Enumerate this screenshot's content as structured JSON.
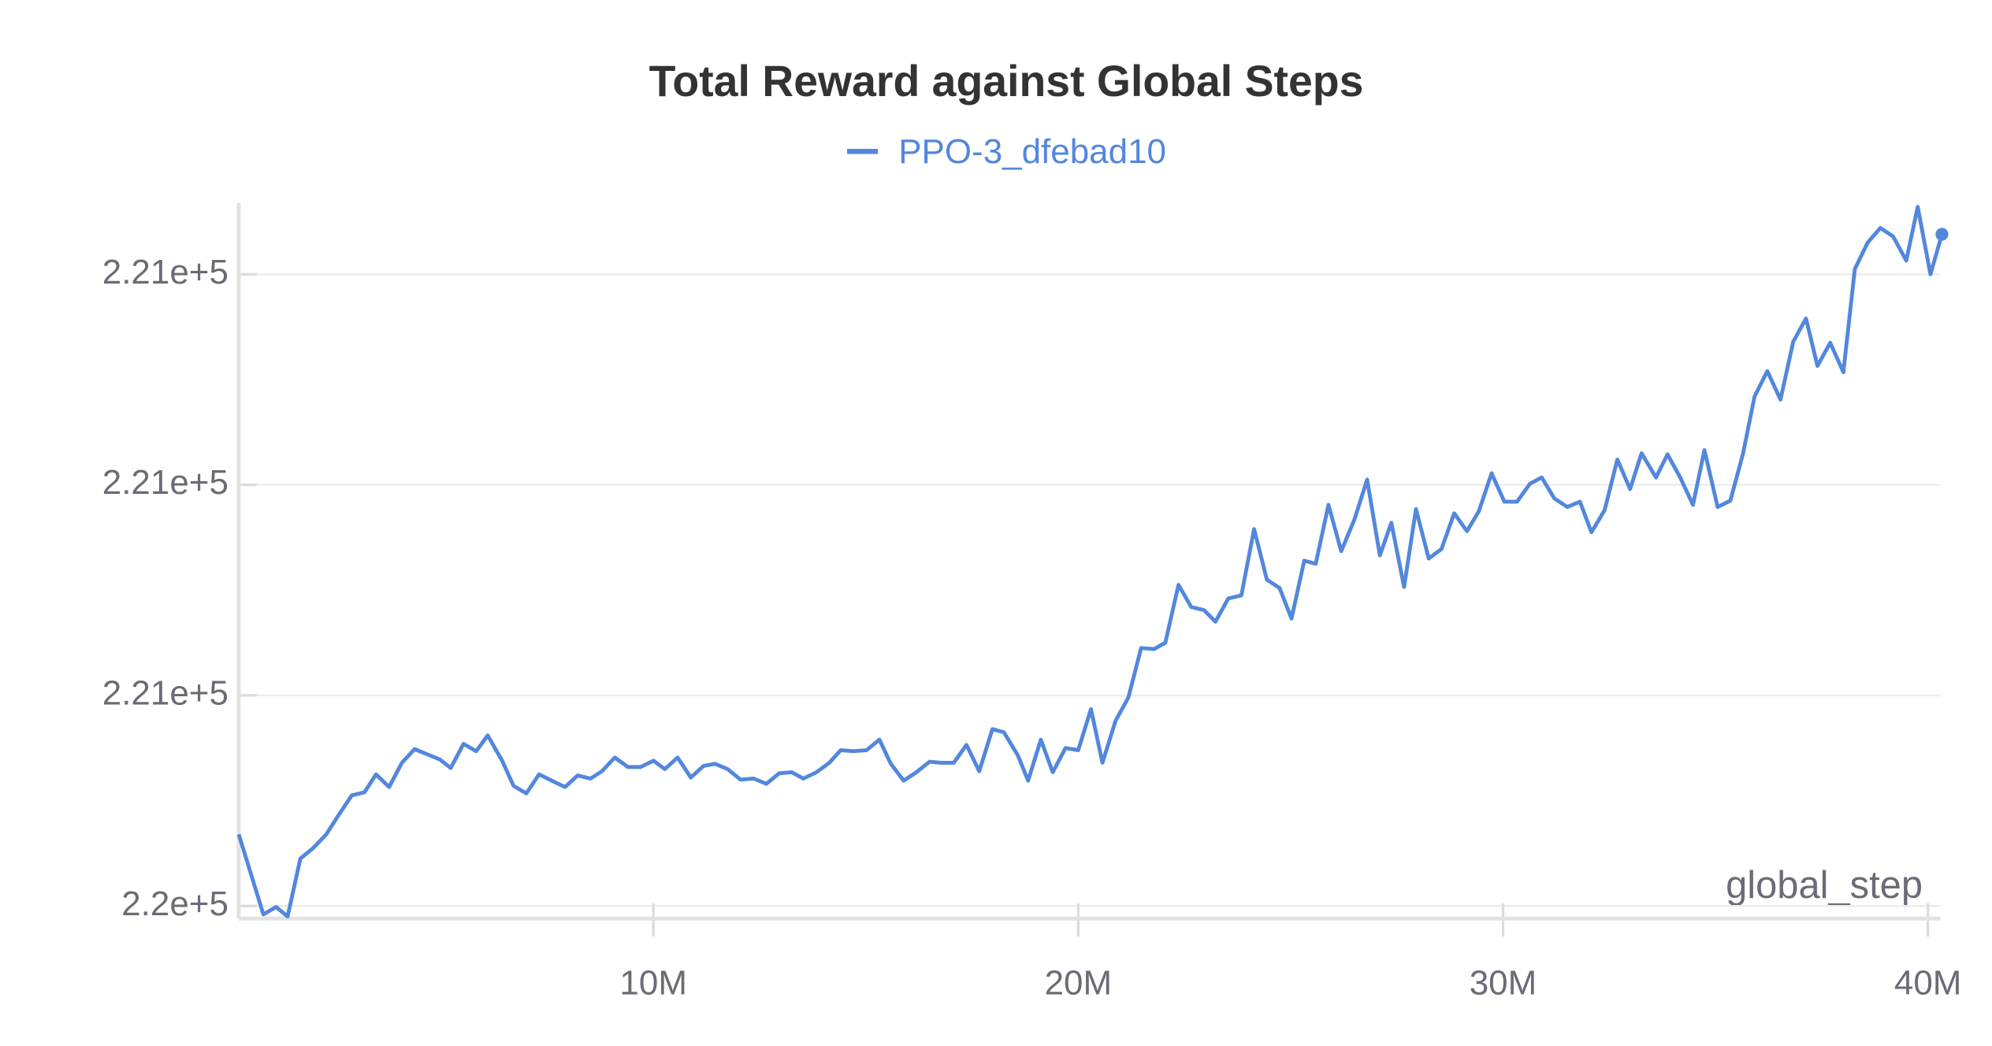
{
  "chart_data": {
    "type": "line",
    "title": "Total Reward against Global Steps",
    "x_label": "global_step",
    "legend": "top",
    "grid": true,
    "xlim": [
      240000,
      40330000
    ],
    "xticks": [
      {
        "value": 10000000,
        "label": "10M"
      },
      {
        "value": 20000000,
        "label": "20M"
      },
      {
        "value": 30000000,
        "label": "30M"
      },
      {
        "value": 40000000,
        "label": "40M"
      }
    ],
    "ylim": [
      220388,
      221068
    ],
    "yticks": [
      {
        "value": 220400,
        "label": "2.2e+5"
      },
      {
        "value": 220600,
        "label": "2.21e+5"
      },
      {
        "value": 220800,
        "label": "2.21e+5"
      },
      {
        "value": 221000,
        "label": "2.21e+5"
      }
    ],
    "x": [
      240000,
      820000,
      1120000,
      1390000,
      1690000,
      1990000,
      2300000,
      2570000,
      2900000,
      3200000,
      3470000,
      3780000,
      4080000,
      4380000,
      4680000,
      4980000,
      5230000,
      5530000,
      5830000,
      6100000,
      6440000,
      6710000,
      7010000,
      7310000,
      7610000,
      7920000,
      8220000,
      8520000,
      8790000,
      9090000,
      9400000,
      9700000,
      10000000,
      10270000,
      10570000,
      10880000,
      11180000,
      11450000,
      11750000,
      12050000,
      12360000,
      12660000,
      12960000,
      13260000,
      13530000,
      13840000,
      14140000,
      14410000,
      14710000,
      15020000,
      15320000,
      15590000,
      15890000,
      16190000,
      16500000,
      16770000,
      17070000,
      17370000,
      17670000,
      17980000,
      18250000,
      18580000,
      18820000,
      19120000,
      19400000,
      19700000,
      20000000,
      20300000,
      20570000,
      20880000,
      21180000,
      21480000,
      21780000,
      22050000,
      22360000,
      22660000,
      22960000,
      23230000,
      23530000,
      23840000,
      24140000,
      24440000,
      24740000,
      25020000,
      25320000,
      25590000,
      25890000,
      26190000,
      26500000,
      26800000,
      27100000,
      27370000,
      27670000,
      27950000,
      28250000,
      28550000,
      28850000,
      29150000,
      29430000,
      29730000,
      30030000,
      30330000,
      30630000,
      30910000,
      31210000,
      31510000,
      31810000,
      32080000,
      32390000,
      32690000,
      32990000,
      33260000,
      33600000,
      33870000,
      34170000,
      34470000,
      34740000,
      35050000,
      35350000,
      35650000,
      35920000,
      36220000,
      36530000,
      36830000,
      37130000,
      37400000,
      37700000,
      38010000,
      38280000,
      38580000,
      38880000,
      39180000,
      39490000,
      39760000,
      40060000,
      40330000
    ],
    "series": [
      {
        "name": "PPO-3_dfebad10",
        "color": "#5387dd",
        "values": [
          220468,
          220392,
          220399,
          220390,
          220445,
          220455,
          220468,
          220485,
          220505,
          220508,
          220525,
          220513,
          220536,
          220549,
          220544,
          220539,
          220531,
          220554,
          220547,
          220562,
          220538,
          220514,
          220507,
          220525,
          220519,
          220513,
          220524,
          220521,
          220528,
          220541,
          220532,
          220532,
          220538,
          220530,
          220541,
          220522,
          220533,
          220535,
          220530,
          220520,
          220521,
          220516,
          220526,
          220527,
          220521,
          220527,
          220536,
          220548,
          220547,
          220548,
          220558,
          220535,
          220519,
          220527,
          220537,
          220536,
          220536,
          220553,
          220528,
          220568,
          220565,
          220543,
          220519,
          220558,
          220527,
          220550,
          220548,
          220587,
          220536,
          220576,
          220598,
          220645,
          220644,
          220650,
          220705,
          220684,
          220681,
          220670,
          220692,
          220695,
          220758,
          220710,
          220702,
          220673,
          220728,
          220725,
          220781,
          220737,
          220767,
          220805,
          220733,
          220764,
          220703,
          220777,
          220730,
          220739,
          220773,
          220756,
          220775,
          220811,
          220784,
          220784,
          220801,
          220807,
          220787,
          220779,
          220784,
          220755,
          220776,
          220824,
          220796,
          220830,
          220807,
          220829,
          220807,
          220781,
          220833,
          220779,
          220785,
          220830,
          220884,
          220908,
          220881,
          220936,
          220958,
          220913,
          220935,
          220907,
          221005,
          221030,
          221044,
          221036,
          221013,
          221064,
          221000,
          221038
        ]
      }
    ]
  }
}
